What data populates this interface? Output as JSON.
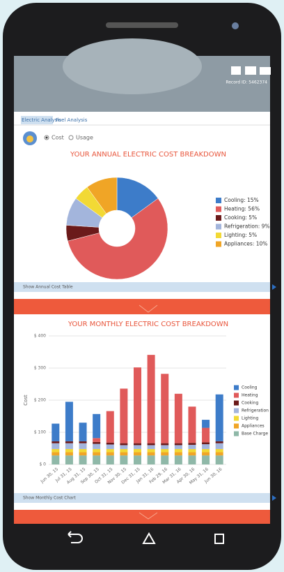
{
  "header": {
    "record_id": "Record ID: 5462374"
  },
  "tabs": [
    "Electric Analysis",
    "Fuel Analysis"
  ],
  "options": [
    "Cost",
    "Usage"
  ],
  "links": [
    "Show Annual Cost Table",
    "Show Monthly Cost Chart"
  ],
  "chart_data": [
    {
      "type": "pie",
      "title": "YOUR ANNUAL ELECTRIC COST BREAKDOWN",
      "categories": [
        "Cooling: 15%",
        "Heating: 56%",
        "Cooking: 5%",
        "Refrigeration: 9%",
        "Lighting: 5%",
        "Appliances: 10%"
      ],
      "values": [
        15,
        56,
        5,
        9,
        5,
        10
      ],
      "colors": [
        "#3d7cc9",
        "#e05a5a",
        "#6b1a1a",
        "#a3b5dc",
        "#f2d935",
        "#f0a526"
      ]
    },
    {
      "type": "bar",
      "stacked": true,
      "title": "YOUR MONTHLY ELECTRIC COST BREAKDOWN",
      "y_label": "Cost",
      "categories": [
        "Jun 30, 15",
        "Jul 31, 15",
        "Aug 31, 15",
        "Sep 30, 15",
        "Oct 31, 15",
        "Nov 30, 15",
        "Dec 31, 15",
        "Jan 31, 16",
        "Feb 29, 16",
        "Mar 31, 16",
        "Apr 30, 16",
        "May 31, 16",
        "Jun 30, 16"
      ],
      "series": [
        {
          "name": "Cooling",
          "color": "#3d7cc9",
          "values": [
            55,
            123,
            58,
            75,
            0,
            0,
            0,
            0,
            0,
            0,
            0,
            25,
            146
          ]
        },
        {
          "name": "Heating",
          "color": "#e05a5a",
          "values": [
            0,
            0,
            0,
            12,
            98,
            170,
            236,
            275,
            216,
            154,
            113,
            45,
            0
          ]
        },
        {
          "name": "Cooking",
          "color": "#6b1a1a",
          "values": [
            6,
            6,
            6,
            6,
            6,
            6,
            6,
            6,
            6,
            6,
            6,
            6,
            6
          ]
        },
        {
          "name": "Refrigeration",
          "color": "#a3b5dc",
          "values": [
            18,
            18,
            18,
            16,
            14,
            12,
            12,
            12,
            12,
            12,
            13,
            15,
            18
          ]
        },
        {
          "name": "Lighting",
          "color": "#f2d935",
          "values": [
            10,
            10,
            10,
            10,
            10,
            10,
            10,
            10,
            10,
            10,
            10,
            10,
            10
          ]
        },
        {
          "name": "Appliances",
          "color": "#f0a526",
          "values": [
            10,
            10,
            10,
            10,
            10,
            10,
            10,
            10,
            10,
            10,
            10,
            10,
            10
          ]
        },
        {
          "name": "Base Charge",
          "color": "#8fb8a8",
          "values": [
            28,
            28,
            28,
            28,
            28,
            28,
            28,
            28,
            28,
            28,
            28,
            28,
            28
          ]
        }
      ],
      "ylim": [
        0,
        400
      ],
      "yticks": [
        {
          "value": 0,
          "label": "$ 0"
        },
        {
          "value": 100,
          "label": "$ 100"
        },
        {
          "value": 200,
          "label": "$ 200"
        },
        {
          "value": 300,
          "label": "$ 300"
        },
        {
          "value": 400,
          "label": "$ 400"
        }
      ],
      "grid": true
    }
  ]
}
